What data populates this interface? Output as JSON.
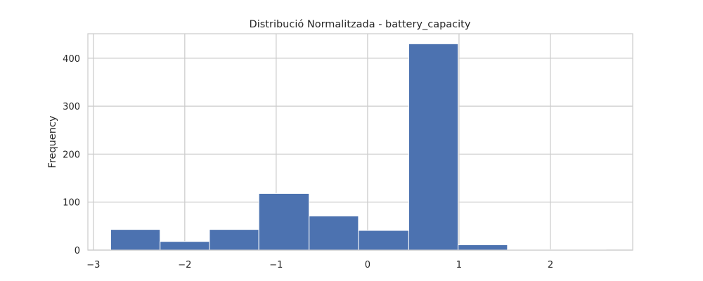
{
  "chart_data": {
    "type": "bar",
    "title": "Distribució Normalitzada - battery_capacity",
    "xlabel": "",
    "ylabel": "Frequency",
    "xlim": [
      -3.06,
      2.9
    ],
    "ylim": [
      0,
      451
    ],
    "xticks": [
      -3,
      -2,
      -1,
      0,
      1,
      2
    ],
    "xtick_labels": [
      "−3",
      "−2",
      "−1",
      "0",
      "1",
      "2"
    ],
    "yticks": [
      0,
      100,
      200,
      300,
      400
    ],
    "ytick_labels": [
      "0",
      "100",
      "200",
      "300",
      "400"
    ],
    "grid": true,
    "bin_edges": [
      -2.81,
      -2.27,
      -1.73,
      -1.19,
      -0.64,
      -0.1,
      0.45,
      0.99,
      1.53,
      2.07,
      2.61
    ],
    "values": [
      43,
      18,
      43,
      118,
      71,
      41,
      430,
      11,
      1,
      1
    ],
    "color": "#4c72b0"
  }
}
